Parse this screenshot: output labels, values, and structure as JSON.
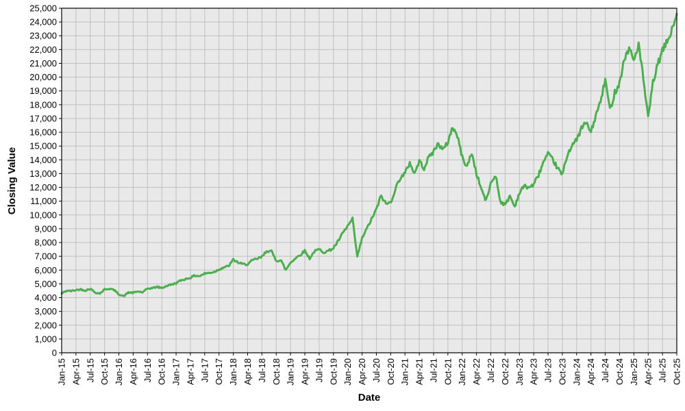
{
  "chart_data": {
    "type": "line",
    "title": "",
    "xlabel": "Date",
    "ylabel": "Closing Value",
    "ylim": [
      0,
      25000
    ],
    "y_tick_step": 1000,
    "y_tick_labels": [
      "0",
      "1,000",
      "2,000",
      "3,000",
      "4,000",
      "5,000",
      "6,000",
      "7,000",
      "8,000",
      "9,000",
      "10,000",
      "11,000",
      "12,000",
      "13,000",
      "14,000",
      "15,000",
      "16,000",
      "17,000",
      "18,000",
      "19,000",
      "20,000",
      "21,000",
      "22,000",
      "23,000",
      "24,000",
      "25,000"
    ],
    "x_tick_labels": [
      "Jan-15",
      "Apr-15",
      "Jul-15",
      "Oct-15",
      "Jan-16",
      "Apr-16",
      "Jul-16",
      "Oct-16",
      "Jan-17",
      "Apr-17",
      "Jul-17",
      "Oct-17",
      "Jan-18",
      "Apr-18",
      "Jul-18",
      "Oct-18",
      "Jan-19",
      "Apr-19",
      "Jul-19",
      "Oct-19",
      "Jan-20",
      "Apr-20",
      "Jul-20",
      "Oct-20",
      "Jan-21",
      "Apr-21",
      "Jul-21",
      "Oct-21",
      "Jan-22",
      "Apr-22",
      "Jul-22",
      "Oct-22",
      "Jan-23",
      "Apr-23",
      "Jul-23",
      "Oct-23",
      "Jan-24",
      "Apr-24",
      "Jul-24",
      "Oct-24",
      "Jan-25",
      "Apr-25",
      "Jul-25",
      "Oct-25"
    ],
    "grid": true,
    "legend_position": "none",
    "line_color": "#4bae4f",
    "plot_bg_color": "#e9e9e9",
    "grid_color": "#bfbfbf",
    "axis_color": "#000000",
    "series": [
      {
        "name": "Closing Value",
        "x_start": "Jan-2015",
        "x_end": "Oct-2025",
        "frequency": "monthly",
        "values": [
          4300,
          4500,
          4480,
          4550,
          4600,
          4520,
          4650,
          4380,
          4300,
          4600,
          4650,
          4550,
          4250,
          4100,
          4380,
          4350,
          4450,
          4380,
          4650,
          4700,
          4780,
          4700,
          4850,
          4950,
          5050,
          5250,
          5350,
          5450,
          5600,
          5570,
          5750,
          5800,
          5870,
          6050,
          6200,
          6280,
          6750,
          6550,
          6420,
          6430,
          6700,
          6820,
          6950,
          7400,
          7350,
          6700,
          6700,
          6000,
          6550,
          6850,
          7100,
          7400,
          6850,
          7350,
          7500,
          7300,
          7400,
          7600,
          8100,
          8700,
          9200,
          9700,
          6950,
          8300,
          9000,
          9700,
          10400,
          11400,
          10800,
          10900,
          11900,
          12700,
          13000,
          13800,
          13000,
          13900,
          13400,
          14200,
          14600,
          15200,
          14700,
          15300,
          16400,
          15700,
          14200,
          13500,
          14500,
          13000,
          11900,
          11000,
          12300,
          12900,
          11000,
          10700,
          11400,
          10600,
          11600,
          12100,
          12000,
          12200,
          12900,
          13800,
          14400,
          14000,
          13400,
          12900,
          14300,
          15100,
          15400,
          16300,
          16700,
          16000,
          17200,
          18200,
          19800,
          17600,
          18900,
          19600,
          21300,
          22100,
          21200,
          22400,
          19800,
          17000,
          19600,
          20900,
          21900,
          22600,
          23400,
          24600
        ]
      }
    ]
  }
}
